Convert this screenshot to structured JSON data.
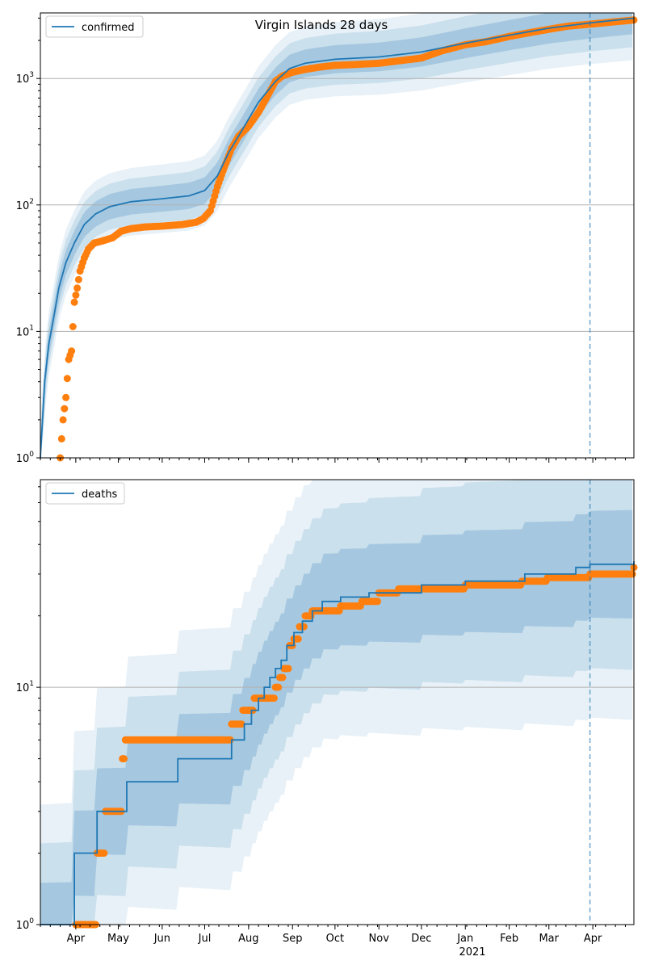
{
  "title": "Virgin Islands 28 days",
  "colors": {
    "model": "#1f77b4",
    "observed": "#ff7f0e",
    "band": "#1f77b4",
    "grid": "#b0b0b0",
    "forecast_line": "#1f77b4"
  },
  "x_tick_labels": [
    "Apr",
    "May",
    "Jun",
    "Jul",
    "Aug",
    "Sep",
    "Oct",
    "Nov",
    "Dec",
    "Jan",
    "Feb",
    "Mar",
    "Apr"
  ],
  "x_year_label": "2021",
  "chart_data": [
    {
      "type": "line",
      "legend": "confirmed",
      "legend_position": "top-left",
      "yscale": "log",
      "ylim": [
        1,
        3300
      ],
      "y_tick_labels": [
        "10^0",
        "10^1",
        "10^2",
        "10^3"
      ],
      "grid": "y-major",
      "xlim": [
        "2020-03-07",
        "2021-04-30"
      ],
      "forecast_start": "2021-03-30",
      "series": [
        {
          "name": "confirmed",
          "kind": "model-median",
          "x": [
            "2020-03-07",
            "2020-03-10",
            "2020-03-13",
            "2020-03-17",
            "2020-03-20",
            "2020-03-25",
            "2020-03-31",
            "2020-04-07",
            "2020-04-15",
            "2020-04-25",
            "2020-05-10",
            "2020-06-01",
            "2020-06-20",
            "2020-07-01",
            "2020-07-10",
            "2020-07-18",
            "2020-07-28",
            "2020-08-08",
            "2020-08-20",
            "2020-08-30",
            "2020-09-10",
            "2020-10-01",
            "2020-11-01",
            "2020-12-01",
            "2021-01-01",
            "2021-02-01",
            "2021-03-01",
            "2021-03-30",
            "2021-04-30"
          ],
          "y": [
            1,
            4,
            8,
            14,
            22,
            35,
            50,
            70,
            85,
            97,
            106,
            112,
            118,
            130,
            170,
            260,
            400,
            650,
            950,
            1200,
            1320,
            1420,
            1480,
            1620,
            1900,
            2200,
            2500,
            2750,
            3000
          ]
        },
        {
          "name": "observed",
          "kind": "observed",
          "x": [
            "2020-03-21",
            "2020-03-23",
            "2020-03-25",
            "2020-03-27",
            "2020-03-29",
            "2020-03-31",
            "2020-04-02",
            "2020-04-04",
            "2020-04-07",
            "2020-04-10",
            "2020-04-14",
            "2020-04-20",
            "2020-04-27",
            "2020-05-03",
            "2020-05-10",
            "2020-05-20",
            "2020-06-01",
            "2020-06-15",
            "2020-06-25",
            "2020-06-30",
            "2020-07-05",
            "2020-07-10",
            "2020-07-15",
            "2020-07-20",
            "2020-07-25",
            "2020-08-01",
            "2020-08-08",
            "2020-08-15",
            "2020-08-20",
            "2020-08-25",
            "2020-09-01",
            "2020-09-10",
            "2020-09-20",
            "2020-10-01",
            "2020-10-15",
            "2020-11-01",
            "2020-11-15",
            "2020-12-01",
            "2020-12-15",
            "2021-01-01",
            "2021-01-15",
            "2021-02-01",
            "2021-02-15",
            "2021-03-01",
            "2021-03-15",
            "2021-04-01",
            "2021-04-15",
            "2021-04-30"
          ],
          "y": [
            1,
            2,
            3,
            6,
            7,
            17,
            22,
            30,
            38,
            45,
            50,
            52,
            55,
            62,
            65,
            67,
            68,
            70,
            73,
            78,
            90,
            140,
            200,
            280,
            350,
            420,
            540,
            750,
            950,
            1050,
            1120,
            1180,
            1230,
            1270,
            1290,
            1320,
            1380,
            1450,
            1650,
            1850,
            1950,
            2150,
            2300,
            2450,
            2600,
            2700,
            2800,
            2900
          ]
        }
      ]
    },
    {
      "type": "line",
      "legend": "deaths",
      "legend_position": "top-left",
      "yscale": "log",
      "ylim": [
        1,
        75
      ],
      "y_tick_labels": [
        "10^0",
        "10^1"
      ],
      "grid": "y-major",
      "xlim": [
        "2020-03-07",
        "2021-04-30"
      ],
      "forecast_start": "2021-03-30",
      "series": [
        {
          "name": "deaths",
          "kind": "model-median",
          "x": [
            "2020-03-07",
            "2020-03-31",
            "2020-04-16",
            "2020-05-07",
            "2020-06-12",
            "2020-07-20",
            "2020-07-29",
            "2020-08-03",
            "2020-08-08",
            "2020-08-12",
            "2020-08-16",
            "2020-08-20",
            "2020-08-24",
            "2020-08-28",
            "2020-09-02",
            "2020-09-08",
            "2020-09-15",
            "2020-09-22",
            "2020-10-05",
            "2020-10-25",
            "2020-12-01",
            "2021-01-01",
            "2021-02-12",
            "2021-03-20",
            "2021-03-30",
            "2021-04-15",
            "2021-04-30"
          ],
          "y": [
            1,
            2,
            3,
            4,
            5,
            6,
            7,
            8,
            9,
            10,
            11,
            12,
            13,
            15,
            17,
            19,
            21,
            23,
            24,
            25,
            27,
            28,
            30,
            32,
            33,
            33,
            34
          ]
        },
        {
          "name": "observed",
          "kind": "observed",
          "x": [
            "2020-04-01",
            "2020-04-12",
            "2020-04-16",
            "2020-04-22",
            "2020-05-04",
            "2020-05-06",
            "2020-05-15",
            "2020-06-01",
            "2020-06-20",
            "2020-07-20",
            "2020-07-28",
            "2020-08-05",
            "2020-08-12",
            "2020-08-20",
            "2020-08-23",
            "2020-08-26",
            "2020-08-30",
            "2020-09-02",
            "2020-09-06",
            "2020-09-10",
            "2020-09-15",
            "2020-09-25",
            "2020-10-05",
            "2020-10-20",
            "2020-11-01",
            "2020-11-15",
            "2020-12-01",
            "2020-12-20",
            "2021-01-01",
            "2021-01-20",
            "2021-02-10",
            "2021-02-28",
            "2021-03-15",
            "2021-03-30",
            "2021-04-15",
            "2021-04-30"
          ],
          "y": [
            1,
            1,
            2,
            3,
            5,
            6,
            6,
            6,
            6,
            7,
            8,
            9,
            9,
            10,
            11,
            12,
            15,
            16,
            18,
            20,
            21,
            21,
            22,
            23,
            25,
            26,
            26,
            26,
            27,
            27,
            28,
            29,
            29,
            30,
            30,
            32
          ]
        }
      ]
    }
  ]
}
